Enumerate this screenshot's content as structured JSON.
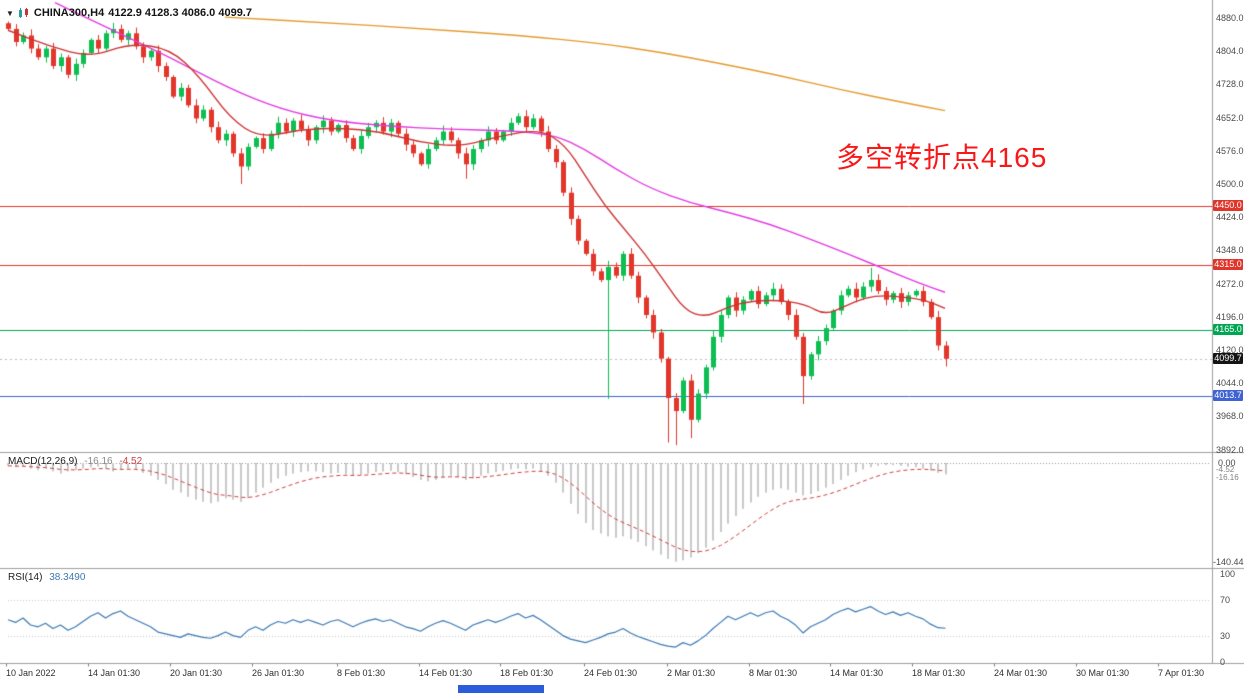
{
  "header": {
    "dropdown_icon": "▼",
    "symbol": "CHINA300,H4",
    "ohlc_text": "4122.9 4128.3 4086.0 4099.7"
  },
  "annotation": {
    "text": "多空转折点4165",
    "color": "#f81818"
  },
  "taskbar_fragment_color": "#2b5cd9",
  "chart_data": {
    "type": "candlestick",
    "symbol": "CHINA300",
    "timeframe": "H4",
    "ohlc_display": {
      "open": 4122.9,
      "high": 4128.3,
      "low": 4086.0,
      "close": 4099.7
    },
    "y_axis": {
      "min": 3892.0,
      "max": 4880.0,
      "ticks": [
        4880.0,
        4804.0,
        4728.0,
        4652.0,
        4576.0,
        4500.0,
        4424.0,
        4348.0,
        4272.0,
        4196.0,
        4120.0,
        4044.0,
        3968.0,
        3892.0
      ]
    },
    "first_open": 4868,
    "closes": [
      4855,
      4825,
      4840,
      4810,
      4790,
      4810,
      4770,
      4790,
      4750,
      4775,
      4800,
      4830,
      4810,
      4845,
      4855,
      4830,
      4845,
      4815,
      4790,
      4805,
      4770,
      4745,
      4700,
      4720,
      4680,
      4650,
      4670,
      4630,
      4600,
      4615,
      4570,
      4540,
      4585,
      4605,
      4580,
      4615,
      4640,
      4620,
      4645,
      4625,
      4600,
      4630,
      4645,
      4620,
      4635,
      4605,
      4580,
      4610,
      4630,
      4640,
      4620,
      4640,
      4615,
      4590,
      4570,
      4545,
      4580,
      4600,
      4620,
      4600,
      4570,
      4545,
      4580,
      4600,
      4620,
      4600,
      4620,
      4640,
      4655,
      4630,
      4650,
      4620,
      4580,
      4550,
      4480,
      4420,
      4370,
      4340,
      4300,
      4280,
      4310,
      4290,
      4340,
      4290,
      4240,
      4200,
      4160,
      4100,
      4010,
      3980,
      4050,
      3960,
      4020,
      4080,
      4150,
      4200,
      4240,
      4210,
      4235,
      4255,
      4225,
      4245,
      4260,
      4230,
      4200,
      4150,
      4060,
      4110,
      4140,
      4170,
      4210,
      4245,
      4260,
      4240,
      4265,
      4280,
      4255,
      4235,
      4250,
      4230,
      4245,
      4255,
      4230,
      4195,
      4130,
      4099.7
    ],
    "wick_overrides": {
      "31": {
        "low": 4500
      },
      "61": {
        "low": 4512
      },
      "80": {
        "low": 4008
      },
      "88": {
        "low": 3908
      },
      "89": {
        "low": 3902
      },
      "91": {
        "low": 3918
      },
      "106": {
        "low": 3996
      },
      "115": {
        "high": 4308
      },
      "125": {
        "low": 4082
      }
    },
    "levels": [
      {
        "price": 4450.0,
        "label": "4450.0",
        "color": "#e0352b"
      },
      {
        "price": 4315.0,
        "label": "4315.0",
        "color": "#e0352b"
      },
      {
        "price": 4165.0,
        "label": "4165.0",
        "color": "#00a651"
      },
      {
        "price": 4013.7,
        "label": "4013.7",
        "color": "#3f63d2"
      }
    ],
    "current_price": {
      "value": 4099.7,
      "label": "4099.7",
      "bg": "#141414"
    },
    "colors": {
      "bull": "#0dbe52",
      "bear": "#e3362b",
      "macd_hist": "#c9c9c9",
      "macd_signal": "#cf4040",
      "rsi_line": "#3e79b4"
    },
    "moving_averages": [
      {
        "name": "slow-ma",
        "color": "#e39b30",
        "points": [
          [
            225,
            4882
          ],
          [
            320,
            4870
          ],
          [
            420,
            4856
          ],
          [
            520,
            4840
          ],
          [
            600,
            4822
          ],
          [
            660,
            4802
          ],
          [
            720,
            4776
          ],
          [
            780,
            4748
          ],
          [
            840,
            4716
          ],
          [
            900,
            4688
          ],
          [
            945,
            4668
          ]
        ]
      },
      {
        "name": "medium-ma",
        "color": "#e23be2",
        "points": [
          [
            55,
            4915
          ],
          [
            110,
            4855
          ],
          [
            170,
            4790
          ],
          [
            230,
            4718
          ],
          [
            280,
            4672
          ],
          [
            330,
            4645
          ],
          [
            390,
            4632
          ],
          [
            450,
            4625
          ],
          [
            510,
            4622
          ],
          [
            555,
            4612
          ],
          [
            585,
            4580
          ],
          [
            615,
            4535
          ],
          [
            650,
            4490
          ],
          [
            690,
            4457
          ],
          [
            730,
            4434
          ],
          [
            770,
            4408
          ],
          [
            810,
            4374
          ],
          [
            850,
            4338
          ],
          [
            890,
            4300
          ],
          [
            920,
            4272
          ],
          [
            945,
            4252
          ]
        ]
      },
      {
        "name": "fast-ma",
        "color": "#cc3333",
        "points": [
          [
            8,
            4852
          ],
          [
            50,
            4815
          ],
          [
            90,
            4790
          ],
          [
            130,
            4822
          ],
          [
            170,
            4810
          ],
          [
            200,
            4745
          ],
          [
            230,
            4650
          ],
          [
            260,
            4605
          ],
          [
            300,
            4625
          ],
          [
            340,
            4628
          ],
          [
            380,
            4620
          ],
          [
            420,
            4595
          ],
          [
            460,
            4585
          ],
          [
            500,
            4610
          ],
          [
            540,
            4625
          ],
          [
            565,
            4590
          ],
          [
            585,
            4520
          ],
          [
            605,
            4450
          ],
          [
            625,
            4395
          ],
          [
            645,
            4340
          ],
          [
            665,
            4275
          ],
          [
            685,
            4210
          ],
          [
            705,
            4195
          ],
          [
            725,
            4215
          ],
          [
            745,
            4230
          ],
          [
            775,
            4235
          ],
          [
            805,
            4225
          ],
          [
            825,
            4200
          ],
          [
            845,
            4220
          ],
          [
            865,
            4240
          ],
          [
            885,
            4245
          ],
          [
            905,
            4240
          ],
          [
            925,
            4235
          ],
          [
            945,
            4215
          ]
        ]
      }
    ],
    "macd": {
      "label": "MACD(12,26,9)",
      "main_text": "-16.16",
      "signal_text": "-4.52",
      "range_min": -140.44,
      "axis": [
        {
          "t": "0.00",
          "v": 0
        },
        {
          "t": "-140.44",
          "v": -140.44
        }
      ],
      "value_labels": [
        {
          "t": "-4.52",
          "v": -4.52
        },
        {
          "t": "-16.16",
          "v": -16.16
        }
      ],
      "series": [
        -4,
        -6,
        -5,
        -8,
        -10,
        -8,
        -12,
        -15,
        -12,
        -10,
        -8,
        -6,
        -5,
        -8,
        -12,
        -10,
        -8,
        -10,
        -14,
        -18,
        -24,
        -30,
        -38,
        -42,
        -48,
        -52,
        -55,
        -57,
        -55,
        -50,
        -52,
        -55,
        -50,
        -42,
        -35,
        -28,
        -22,
        -18,
        -15,
        -13,
        -12,
        -12,
        -13,
        -15,
        -14,
        -16,
        -18,
        -17,
        -15,
        -13,
        -12,
        -11,
        -13,
        -16,
        -20,
        -24,
        -26,
        -24,
        -20,
        -18,
        -20,
        -24,
        -22,
        -18,
        -15,
        -13,
        -11,
        -9,
        -8,
        -9,
        -8,
        -12,
        -18,
        -28,
        -42,
        -58,
        -72,
        -85,
        -95,
        -100,
        -104,
        -106,
        -104,
        -108,
        -112,
        -118,
        -124,
        -130,
        -136,
        -140,
        -138,
        -134,
        -128,
        -120,
        -110,
        -98,
        -86,
        -75,
        -65,
        -56,
        -48,
        -42,
        -38,
        -36,
        -38,
        -42,
        -46,
        -44,
        -40,
        -35,
        -30,
        -24,
        -18,
        -13,
        -9,
        -6,
        -4,
        -3,
        -3,
        -4,
        -5,
        -6,
        -8,
        -11,
        -14,
        -16.16
      ]
    },
    "rsi": {
      "label": "RSI(14)",
      "value_text": "38.3490",
      "levels": [
        70,
        30
      ],
      "axis": [
        "100",
        "70",
        "30",
        "0"
      ],
      "range": [
        0,
        100
      ],
      "series": [
        48,
        45,
        50,
        42,
        40,
        44,
        38,
        42,
        36,
        40,
        46,
        52,
        56,
        50,
        55,
        58,
        52,
        48,
        44,
        40,
        34,
        32,
        30,
        28,
        32,
        30,
        28,
        27,
        30,
        34,
        30,
        28,
        36,
        40,
        36,
        42,
        46,
        44,
        48,
        45,
        48,
        45,
        42,
        46,
        48,
        44,
        40,
        44,
        47,
        49,
        46,
        48,
        44,
        40,
        38,
        35,
        40,
        44,
        47,
        44,
        40,
        36,
        42,
        45,
        48,
        45,
        48,
        52,
        55,
        50,
        53,
        48,
        42,
        36,
        30,
        26,
        24,
        22,
        25,
        28,
        32,
        34,
        38,
        33,
        29,
        26,
        23,
        20,
        18,
        17,
        22,
        19,
        24,
        30,
        38,
        45,
        52,
        48,
        52,
        56,
        52,
        56,
        58,
        52,
        48,
        42,
        33,
        40,
        44,
        48,
        54,
        58,
        61,
        57,
        60,
        63,
        58,
        54,
        57,
        53,
        56,
        52,
        49,
        43,
        39,
        38.35
      ]
    },
    "x_labels": [
      {
        "x": 6,
        "t": "10 Jan 2022"
      },
      {
        "x": 88,
        "t": "14 Jan 01:30"
      },
      {
        "x": 170,
        "t": "20 Jan 01:30"
      },
      {
        "x": 252,
        "t": "26 Jan 01:30"
      },
      {
        "x": 337,
        "t": "8 Feb 01:30"
      },
      {
        "x": 419,
        "t": "14 Feb 01:30"
      },
      {
        "x": 500,
        "t": "18 Feb 01:30"
      },
      {
        "x": 584,
        "t": "24 Feb 01:30"
      },
      {
        "x": 667,
        "t": "2 Mar 01:30"
      },
      {
        "x": 749,
        "t": "8 Mar 01:30"
      },
      {
        "x": 830,
        "t": "14 Mar 01:30"
      },
      {
        "x": 912,
        "t": "18 Mar 01:30"
      },
      {
        "x": 994,
        "t": "24 Mar 01:30"
      },
      {
        "x": 1076,
        "t": "30 Mar 01:30"
      },
      {
        "x": 1158,
        "t": "7 Apr 01:30"
      }
    ]
  }
}
